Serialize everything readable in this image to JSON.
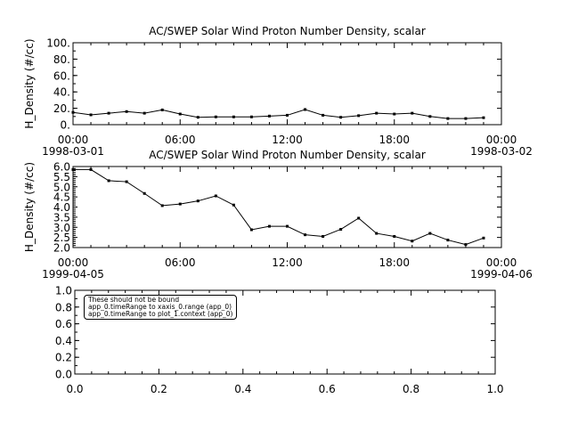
{
  "chart_data": [
    {
      "type": "line",
      "title": "AC/SWEP  Solar Wind Proton Number Density, scalar",
      "ylabel": "H_Density (#/cc)",
      "ylim": [
        0,
        100
      ],
      "yticks": [
        "0.",
        "20.",
        "40.",
        "60.",
        "80.",
        "100."
      ],
      "ytick_values": [
        0,
        20,
        40,
        60,
        80,
        100
      ],
      "xlabel_ticks": [
        {
          "t": "00:00",
          "d": "1998-03-01"
        },
        {
          "t": "06:00",
          "d": ""
        },
        {
          "t": "12:00",
          "d": ""
        },
        {
          "t": "18:00",
          "d": ""
        },
        {
          "t": "00:00",
          "d": "1998-03-02"
        }
      ],
      "xlim_hours": [
        0,
        24
      ],
      "x_hours": [
        0,
        1,
        2,
        3,
        4,
        5,
        6,
        7,
        8,
        9,
        10,
        11,
        12,
        13,
        14,
        15,
        16,
        17,
        18,
        19,
        20,
        21,
        22,
        23
      ],
      "values": [
        15,
        12,
        14,
        16,
        14,
        18,
        13,
        9,
        9.5,
        9.5,
        9.5,
        10.5,
        11.5,
        18.5,
        11.5,
        9,
        11,
        14,
        13,
        14,
        10,
        7.5,
        7.5,
        8.5
      ]
    },
    {
      "type": "line",
      "title": "AC/SWEP  Solar Wind Proton Number Density, scalar",
      "ylabel": "H_Density (#/cc)",
      "ylim": [
        2,
        6
      ],
      "yticks": [
        "2.0",
        "2.5",
        "3.0",
        "3.5",
        "4.0",
        "4.5",
        "5.0",
        "5.5",
        "6.0"
      ],
      "ytick_values": [
        2,
        2.5,
        3,
        3.5,
        4,
        4.5,
        5,
        5.5,
        6
      ],
      "xlabel_ticks": [
        {
          "t": "00:00",
          "d": "1999-04-05"
        },
        {
          "t": "06:00",
          "d": ""
        },
        {
          "t": "12:00",
          "d": ""
        },
        {
          "t": "18:00",
          "d": ""
        },
        {
          "t": "00:00",
          "d": "1999-04-06"
        }
      ],
      "xlim_hours": [
        0,
        24
      ],
      "x_hours": [
        0,
        1,
        2,
        3,
        4,
        5,
        6,
        7,
        8,
        9,
        10,
        11,
        12,
        13,
        14,
        15,
        16,
        17,
        18,
        19,
        20,
        21,
        22,
        23
      ],
      "values": [
        5.85,
        5.85,
        5.3,
        5.25,
        4.67,
        4.07,
        4.15,
        4.3,
        4.55,
        4.1,
        2.88,
        3.05,
        3.05,
        2.63,
        2.55,
        2.9,
        3.45,
        2.7,
        2.55,
        2.32,
        2.7,
        2.37,
        2.15,
        2.47
      ]
    },
    {
      "type": "line",
      "title": "",
      "ylim": [
        0,
        1
      ],
      "xlim": [
        0,
        1
      ],
      "yticks": [
        "0.0",
        "0.2",
        "0.4",
        "0.6",
        "0.8",
        "1.0"
      ],
      "ytick_values": [
        0,
        0.2,
        0.4,
        0.6,
        0.8,
        1.0
      ],
      "xticks": [
        "0.0",
        "0.2",
        "0.4",
        "0.6",
        "0.8",
        "1.0"
      ],
      "xtick_values": [
        0,
        0.2,
        0.4,
        0.6,
        0.8,
        1.0
      ],
      "values": []
    }
  ],
  "annotation": {
    "lines": [
      "These should not be bound",
      "app_0.timeRange to xaxis_0.range  (app_0)",
      "app_0.timeRange to plot_1.context  (app_0)"
    ]
  }
}
